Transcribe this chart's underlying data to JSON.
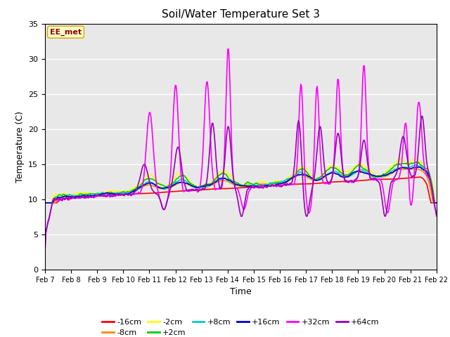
{
  "title": "Soil/Water Temperature Set 3",
  "xlabel": "Time",
  "ylabel": "Temperature (C)",
  "ylim": [
    0,
    35
  ],
  "yticks": [
    0,
    5,
    10,
    15,
    20,
    25,
    30,
    35
  ],
  "xtick_labels": [
    "Feb 7",
    "Feb 8",
    "Feb 9",
    "Feb 10",
    "Feb 11",
    "Feb 12",
    "Feb 13",
    "Feb 14",
    "Feb 15",
    "Feb 16",
    "Feb 17",
    "Feb 18",
    "Feb 19",
    "Feb 20",
    "Feb 21",
    "Feb 22"
  ],
  "plot_bg": "#e8e8e8",
  "grid_color": "#ffffff",
  "label_box_text": "EE_met",
  "label_box_bg": "#ffffcc",
  "label_box_edge": "#ccaa00",
  "series_order": [
    "-16cm",
    "-8cm",
    "-2cm",
    "+2cm",
    "+8cm",
    "+16cm",
    "+32cm",
    "+64cm"
  ],
  "series": {
    "-16cm": {
      "color": "#ff0000",
      "lw": 1.2
    },
    "-8cm": {
      "color": "#ff8800",
      "lw": 1.2
    },
    "-2cm": {
      "color": "#ffff00",
      "lw": 1.2
    },
    "+2cm": {
      "color": "#00cc00",
      "lw": 1.2
    },
    "+8cm": {
      "color": "#00cccc",
      "lw": 1.2
    },
    "+16cm": {
      "color": "#0000cc",
      "lw": 1.2
    },
    "+32cm": {
      "color": "#ff00ff",
      "lw": 1.2
    },
    "+64cm": {
      "color": "#9900bb",
      "lw": 1.2
    }
  }
}
